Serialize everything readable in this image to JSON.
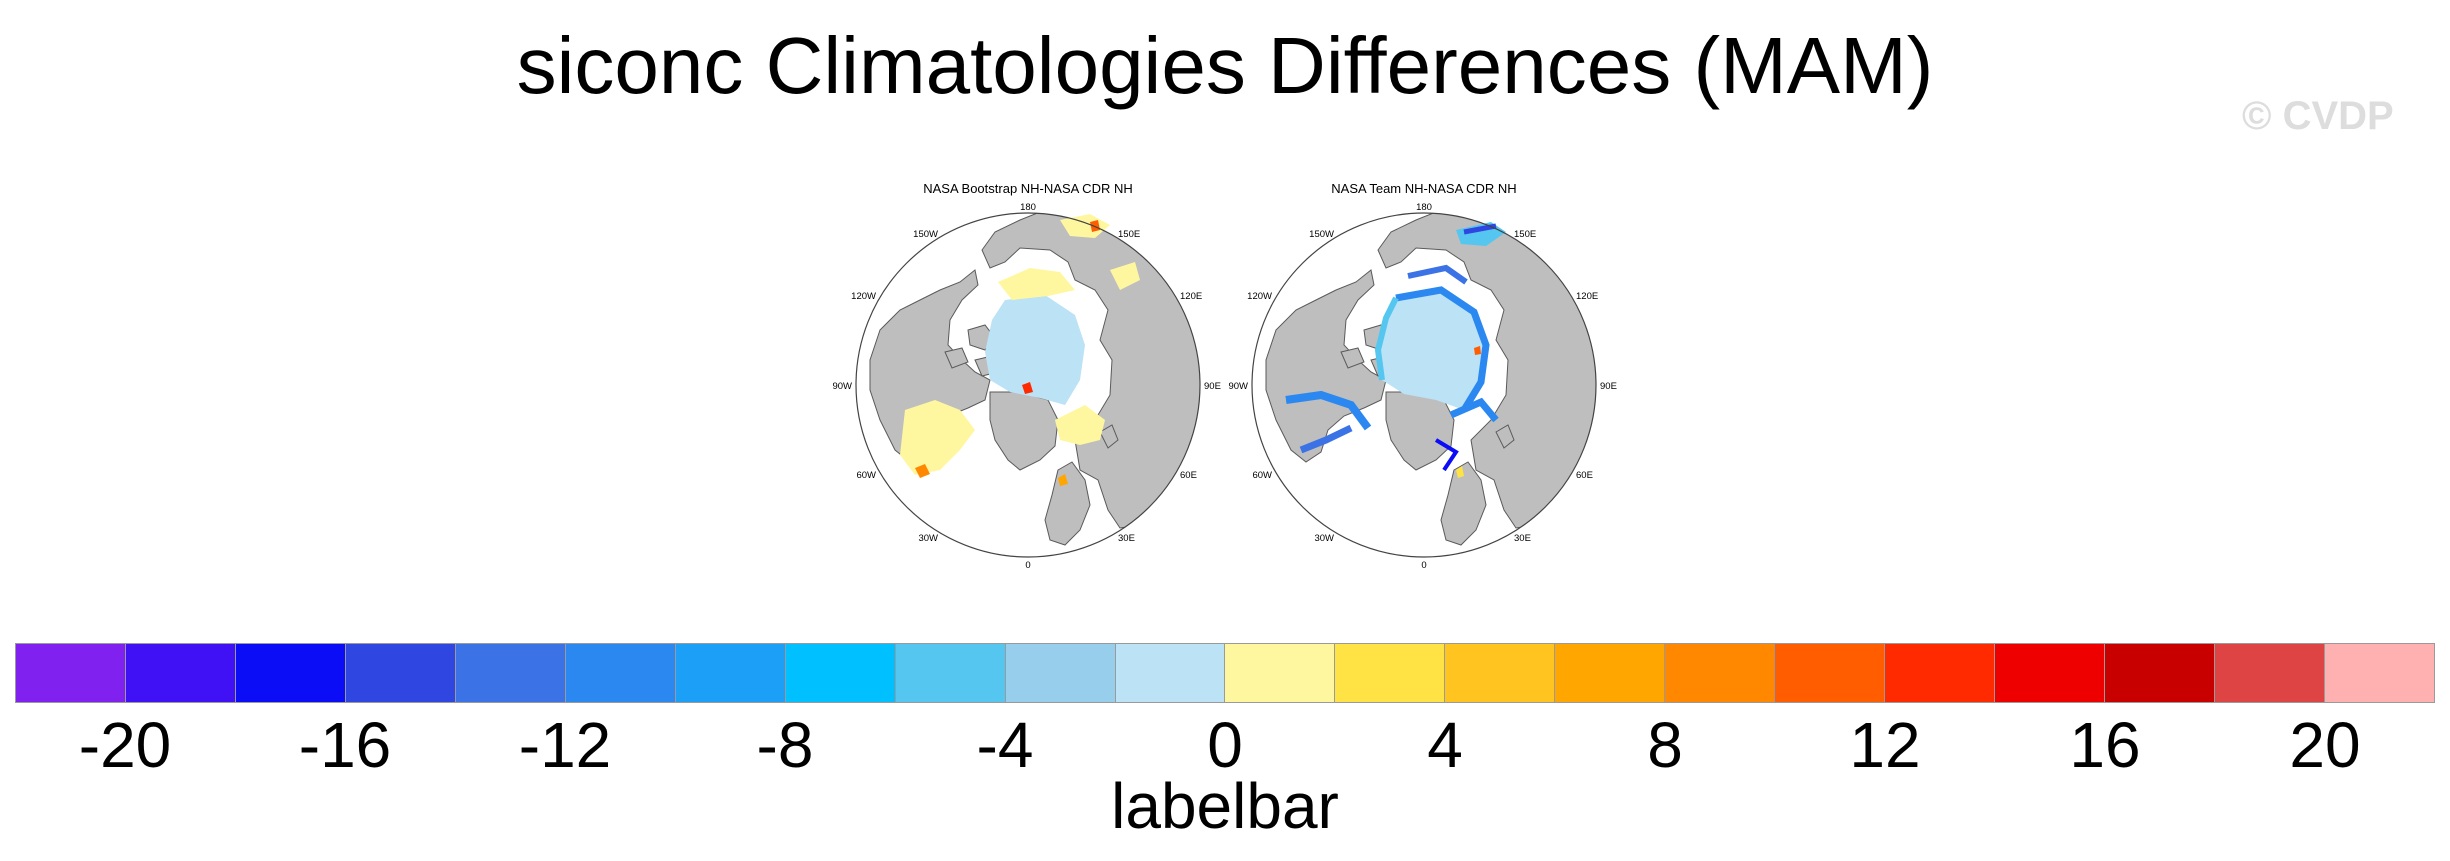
{
  "title": "siconc Climatologies Differences (MAM)",
  "watermark": "© CVDP",
  "panels": [
    {
      "title": "NASA Bootstrap NH-NASA CDR NH",
      "lon_labels": {
        "180": "180",
        "150E": "150E",
        "120E": "120E",
        "90E": "90E",
        "60E": "60E",
        "30E": "30E",
        "0": "0",
        "30W": "30W",
        "60W": "60W",
        "90W": "90W",
        "120W": "120W",
        "150W": "150W"
      }
    },
    {
      "title": "NASA Team NH-NASA CDR NH",
      "lon_labels": {
        "180": "180",
        "150E": "150E",
        "120E": "120E",
        "90E": "90E",
        "60E": "60E",
        "30E": "30E",
        "0": "0",
        "30W": "30W",
        "60W": "60W",
        "90W": "90W",
        "120W": "120W",
        "150W": "150W"
      }
    }
  ],
  "colorbar": {
    "title": "labelbar",
    "labels": [
      "-20",
      "-16",
      "-12",
      "-8",
      "-4",
      "0",
      "4",
      "8",
      "12",
      "16",
      "20"
    ],
    "label_values": [
      -20,
      -16,
      -12,
      -8,
      -4,
      0,
      4,
      8,
      12,
      16,
      20
    ],
    "range": [
      -22,
      22
    ],
    "colors": [
      "#8121f0",
      "#4011f5",
      "#0a0df5",
      "#2f47e0",
      "#3b72e6",
      "#2a88f0",
      "#1b9ff7",
      "#00c0ff",
      "#55c6f0",
      "#97ceec",
      "#bbe2f5",
      "#fff7a0",
      "#ffe243",
      "#ffc420",
      "#ffa600",
      "#ff8800",
      "#ff5d00",
      "#ff2a00",
      "#ee0000",
      "#c80000",
      "#de4444",
      "#ffb0b0"
    ]
  },
  "colors": {
    "land": "#bebebe",
    "ocean": "#ffffff",
    "outline": "#555555"
  }
}
